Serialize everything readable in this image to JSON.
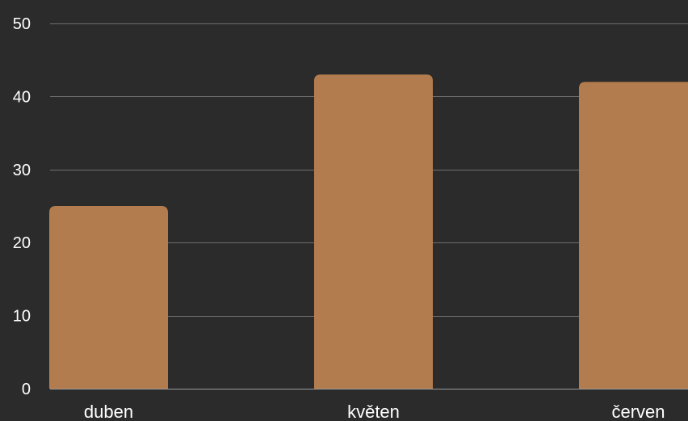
{
  "chart_data": {
    "type": "bar",
    "categories": [
      "duben",
      "květen",
      "červen"
    ],
    "values": [
      25,
      43,
      42
    ],
    "title": "",
    "xlabel": "",
    "ylabel": "",
    "ylim": [
      0,
      50
    ],
    "yticks": [
      0,
      10,
      20,
      30,
      40,
      50
    ],
    "grid": true,
    "legend": "none",
    "colors": {
      "background": "#2b2b2b",
      "bar": "#b37c4e",
      "grid": "#6e6e6e",
      "text": "#ffffff"
    }
  }
}
